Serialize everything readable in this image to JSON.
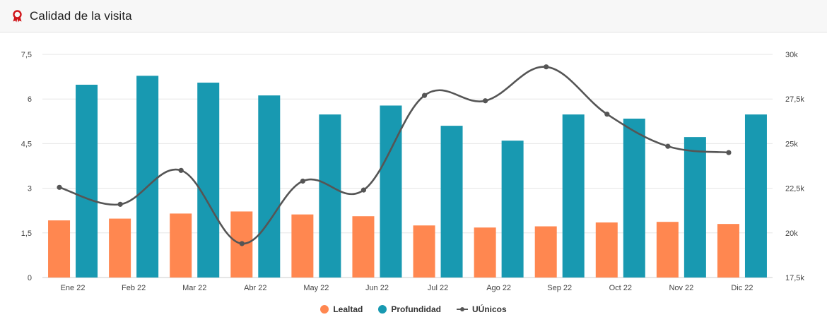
{
  "header": {
    "title": "Calidad de la visita",
    "icon": "award-ribbon-icon",
    "icon_color": "#d0161b"
  },
  "colors": {
    "lealtad": "#ff8750",
    "profundidad": "#1899b1",
    "uunicos": "#555555",
    "grid": "#e6e6e6"
  },
  "chart_data": {
    "type": "bar",
    "categories": [
      "Ene 22",
      "Feb 22",
      "Mar 22",
      "Abr 22",
      "May 22",
      "Jun 22",
      "Jul 22",
      "Ago 22",
      "Sep 22",
      "Oct 22",
      "Nov 22",
      "Dic 22"
    ],
    "series": [
      {
        "name": "Lealtad",
        "type": "bar",
        "axis": "left",
        "values": [
          1.92,
          1.98,
          2.15,
          2.22,
          2.12,
          2.06,
          1.75,
          1.68,
          1.72,
          1.85,
          1.87,
          1.8
        ]
      },
      {
        "name": "Profundidad",
        "type": "bar",
        "axis": "left",
        "values": [
          6.48,
          6.78,
          6.55,
          6.12,
          5.48,
          5.78,
          5.1,
          4.6,
          5.48,
          5.34,
          4.72,
          5.48
        ]
      },
      {
        "name": "UÚnicos",
        "type": "line",
        "axis": "right",
        "smooth": true,
        "values": [
          22550,
          21600,
          23500,
          19400,
          22900,
          22400,
          27700,
          27400,
          29300,
          26650,
          24850,
          24500
        ]
      }
    ],
    "y_left": {
      "ylim": [
        0,
        7.5
      ],
      "ticks": [
        "0",
        "1,5",
        "3",
        "4,5",
        "6",
        "7,5"
      ]
    },
    "y_right": {
      "ylim": [
        17500,
        30000
      ],
      "ticks": [
        "17,5k",
        "20k",
        "22,5k",
        "25k",
        "27,5k",
        "30k"
      ]
    },
    "grid": true,
    "legend_position": "bottom-center"
  }
}
